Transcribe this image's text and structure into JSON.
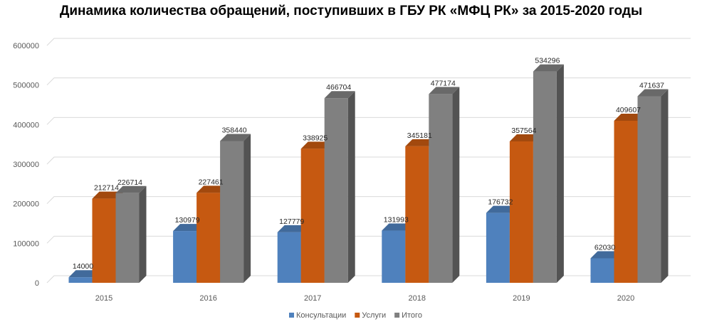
{
  "chart_data": {
    "type": "bar",
    "title": "Динамика количества обращений, поступивших в ГБУ РК «МФЦ РК» за 2015-2020 годы",
    "categories": [
      "2015",
      "2016",
      "2017",
      "2018",
      "2019",
      "2020"
    ],
    "series": [
      {
        "name": "Консультации",
        "values": [
          14000,
          130979,
          127779,
          131993,
          176732,
          62030
        ],
        "color": "#4f81bd"
      },
      {
        "name": "Услуги",
        "values": [
          212714,
          227461,
          338925,
          345181,
          357564,
          409607
        ],
        "color": "#c65911"
      },
      {
        "name": "Итого",
        "values": [
          226714,
          358440,
          466704,
          477174,
          534296,
          471637
        ],
        "color": "#808080"
      }
    ],
    "y_ticks": [
      "0",
      "100000",
      "200000",
      "300000",
      "400000",
      "500000",
      "600000"
    ],
    "ylim": [
      0,
      600000
    ],
    "grid": true,
    "legend": "bottom",
    "style": "3d-clustered-column"
  }
}
